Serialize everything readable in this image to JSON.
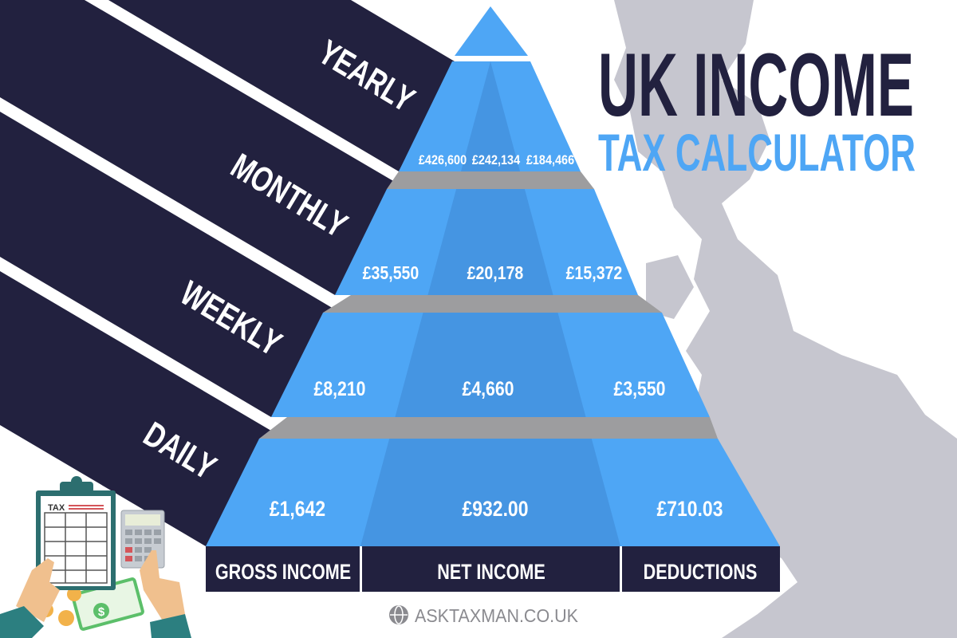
{
  "title": {
    "line1": "UK INCOME",
    "line2": "TAX CALCULATOR"
  },
  "colors": {
    "navy": "#22213f",
    "blue": "#4ea6f5",
    "blue_dark": "#4595e2",
    "gray": "#9d9d9f",
    "map": "#c6c6cf"
  },
  "periods": [
    {
      "label": "YEARLY",
      "gross": "£426,600",
      "net": "£242,134",
      "deductions": "£184,466"
    },
    {
      "label": "MONTHLY",
      "gross": "£35,550",
      "net": "£20,178",
      "deductions": "£15,372"
    },
    {
      "label": "WEEKLY",
      "gross": "£8,210",
      "net": "£4,660",
      "deductions": "£3,550"
    },
    {
      "label": "DAILY",
      "gross": "£1,642",
      "net": "£932.00",
      "deductions": "£710.03"
    }
  ],
  "columns": [
    "GROSS INCOME",
    "NET INCOME",
    "DEDUCTIONS"
  ],
  "illustration": {
    "clipboard_label": "TAX",
    "icons": [
      "clipboard-icon",
      "calculator-icon",
      "banknote-icon",
      "coin-icon"
    ]
  },
  "footer": {
    "site": "ASKTAXMAN.CO.UK",
    "icon": "globe-icon"
  }
}
